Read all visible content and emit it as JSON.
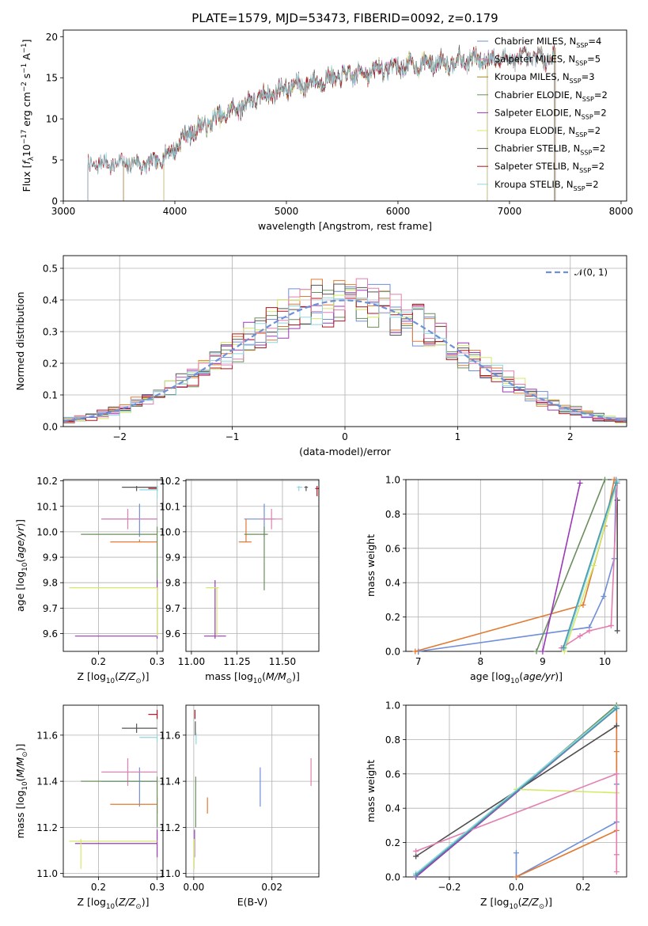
{
  "figure": {
    "title": "PLATE=1579, MJD=53473, FIBERID=0092, z=0.179"
  },
  "colors": {
    "palette": [
      "#6f8fd9",
      "#e07a33",
      "#6b8e5e",
      "#9b39b8",
      "#d4e86a",
      "#555555",
      "#b0141e",
      "#e37fb0",
      "#8fd8e0",
      "#4e4e4e"
    ],
    "grid": "#b0b0b0"
  },
  "chart_data": [
    {
      "id": "spectrum",
      "type": "line",
      "xlabel": "wavelength [Angstrom, rest frame]",
      "ylabel": "Flux [f_λ10^−17 erg cm^−2 s^−1 A^−1]",
      "xlim": [
        3000,
        8050
      ],
      "ylim": [
        0,
        20.8
      ],
      "xticks": [
        3000,
        4000,
        5000,
        6000,
        7000,
        8000
      ],
      "yticks": [
        0,
        5,
        10,
        15,
        20
      ],
      "grid": false,
      "legend_position": "right",
      "series": [
        {
          "name": "Chabrier MILES, N_SSP=4",
          "color": "#6f8fd9",
          "range": [
            3540,
            7410
          ]
        },
        {
          "name": "Salpeter MILES, N_SSP=5",
          "color": "#e37fb0",
          "range": [
            3540,
            7410
          ]
        },
        {
          "name": "Kroupa MILES, N_SSP=3",
          "color": "#a8841f",
          "range": [
            3540,
            7410
          ]
        },
        {
          "name": "Chabrier ELODIE, N_SSP=2",
          "color": "#6b8e5e",
          "range": [
            3900,
            6800
          ]
        },
        {
          "name": "Salpeter ELODIE, N_SSP=2",
          "color": "#9b39b8",
          "range": [
            3900,
            6800
          ]
        },
        {
          "name": "Kroupa ELODIE, N_SSP=2",
          "color": "#d4e86a",
          "range": [
            3900,
            6800
          ]
        },
        {
          "name": "Chabrier STELIB, N_SSP=2",
          "color": "#555555",
          "range": [
            3220,
            7400
          ]
        },
        {
          "name": "Salpeter STELIB, N_SSP=2",
          "color": "#b0141e",
          "range": [
            3220,
            7400
          ]
        },
        {
          "name": "Kroupa STELIB, N_SSP=2",
          "color": "#8fd8e0",
          "range": [
            3220,
            7400
          ]
        }
      ],
      "continuum": [
        [
          3220,
          4.4
        ],
        [
          3400,
          4.6
        ],
        [
          3600,
          4.6
        ],
        [
          3800,
          4.5
        ],
        [
          3950,
          5.8
        ],
        [
          4100,
          8.0
        ],
        [
          4400,
          10.2
        ],
        [
          4700,
          12.3
        ],
        [
          5000,
          13.8
        ],
        [
          5300,
          14.6
        ],
        [
          5600,
          15.4
        ],
        [
          5900,
          16.2
        ],
        [
          6300,
          16.8
        ],
        [
          6700,
          17.2
        ],
        [
          7000,
          17.3
        ],
        [
          7400,
          17.5
        ]
      ]
    },
    {
      "id": "residuals",
      "type": "histogram",
      "xlabel": "(data-model)/error",
      "ylabel": "Normed distribution",
      "xlim": [
        -2.5,
        2.5
      ],
      "ylim": [
        0,
        0.54
      ],
      "xticks": [
        -2,
        -1,
        0,
        1,
        2
      ],
      "yticks": [
        0.0,
        0.1,
        0.2,
        0.3,
        0.4,
        0.5
      ],
      "grid": true,
      "legend_position": "upper right",
      "reference_curve": {
        "name": "𝒩(0, 1)",
        "color": "#6f8fd9",
        "style": "dashed"
      },
      "bin_width": 0.1
    },
    {
      "id": "age-vs-Z",
      "type": "scatter",
      "xlabel": "Z [log10(Z/Z☉)]",
      "ylabel": "age  [log10(age/yr)]",
      "xlim": [
        0.14,
        0.31
      ],
      "ylim": [
        9.53,
        10.205
      ],
      "xticks": [
        0.2,
        0.3
      ],
      "yticks": [
        9.6,
        9.7,
        9.8,
        9.9,
        10.0,
        10.1,
        10.2
      ],
      "grid": true,
      "points": [
        {
          "x": 0.27,
          "y": 10.05,
          "xlo": 0.205,
          "xhi": 0.3,
          "ylo": 9.98,
          "yhi": 10.11,
          "color": "#6f8fd9"
        },
        {
          "x": 0.25,
          "y": 10.05,
          "xlo": 0.205,
          "xhi": 0.3,
          "ylo": 10.01,
          "yhi": 10.09,
          "color": "#e37fb0"
        },
        {
          "x": 0.27,
          "y": 9.96,
          "xlo": 0.22,
          "xhi": 0.3,
          "ylo": 9.96,
          "yhi": 9.97,
          "color": "#e07a33"
        },
        {
          "x": 0.3,
          "y": 9.99,
          "xlo": 0.17,
          "xhi": 0.3,
          "ylo": 9.77,
          "yhi": 10.02,
          "color": "#6b8e5e"
        },
        {
          "x": 0.3,
          "y": 9.59,
          "xlo": 0.16,
          "xhi": 0.3,
          "ylo": 9.58,
          "yhi": 9.81,
          "color": "#9b39b8"
        },
        {
          "x": 0.3,
          "y": 9.78,
          "xlo": 0.15,
          "xhi": 0.3,
          "ylo": 9.59,
          "yhi": 9.78,
          "color": "#d4e86a"
        },
        {
          "x": 0.265,
          "y": 10.175,
          "xlo": 0.24,
          "xhi": 0.3,
          "ylo": 10.16,
          "yhi": 10.18,
          "color": "#555555"
        },
        {
          "x": 0.3,
          "y": 10.17,
          "xlo": 0.285,
          "xhi": 0.3,
          "ylo": 10.16,
          "yhi": 10.18,
          "color": "#b0141e"
        },
        {
          "x": 0.3,
          "y": 10.165,
          "xlo": 0.27,
          "xhi": 0.3,
          "ylo": 10.13,
          "yhi": 10.18,
          "color": "#8fd8e0"
        }
      ]
    },
    {
      "id": "age-vs-mass",
      "type": "scatter",
      "xlabel": "mass [log10(M/M☉)]",
      "ylabel": "",
      "xlim": [
        10.97,
        11.7
      ],
      "ylim": [
        9.53,
        10.205
      ],
      "xticks": [
        11.0,
        11.25,
        11.5
      ],
      "yticks": [
        9.6,
        9.7,
        9.8,
        9.9,
        10.0,
        10.1,
        10.2
      ],
      "grid": true,
      "points": [
        {
          "x": 11.4,
          "y": 10.05,
          "xlo": 11.29,
          "xhi": 11.46,
          "ylo": 9.98,
          "yhi": 10.11,
          "color": "#6f8fd9"
        },
        {
          "x": 11.44,
          "y": 10.05,
          "xlo": 11.38,
          "xhi": 11.5,
          "ylo": 10.01,
          "yhi": 10.09,
          "color": "#e37fb0"
        },
        {
          "x": 11.3,
          "y": 9.96,
          "xlo": 11.26,
          "xhi": 11.33,
          "ylo": 9.96,
          "yhi": 10.05,
          "color": "#e07a33"
        },
        {
          "x": 11.4,
          "y": 9.99,
          "xlo": 11.29,
          "xhi": 11.42,
          "ylo": 9.77,
          "yhi": 10.02,
          "color": "#6b8e5e"
        },
        {
          "x": 11.13,
          "y": 9.59,
          "xlo": 11.07,
          "xhi": 11.19,
          "ylo": 9.58,
          "yhi": 9.81,
          "color": "#9b39b8"
        },
        {
          "x": 11.14,
          "y": 9.78,
          "xlo": 11.08,
          "xhi": 11.15,
          "ylo": 9.59,
          "yhi": 9.78,
          "color": "#d4e86a"
        },
        {
          "x": 11.63,
          "y": 10.175,
          "xlo": 11.62,
          "xhi": 11.64,
          "ylo": 10.16,
          "yhi": 10.18,
          "color": "#555555"
        },
        {
          "x": 11.69,
          "y": 10.17,
          "xlo": 11.68,
          "xhi": 11.7,
          "ylo": 10.14,
          "yhi": 10.18,
          "color": "#b0141e"
        },
        {
          "x": 11.59,
          "y": 10.175,
          "xlo": 11.58,
          "xhi": 11.61,
          "ylo": 10.16,
          "yhi": 10.18,
          "color": "#8fd8e0"
        }
      ]
    },
    {
      "id": "mass-weight-vs-age",
      "type": "line",
      "xlabel": "age  [log10(age/yr)]",
      "ylabel": "mass weight",
      "xlim": [
        6.8,
        10.35
      ],
      "ylim": [
        0,
        1.0
      ],
      "xticks": [
        7,
        8,
        9,
        10
      ],
      "yticks": [
        0.0,
        0.2,
        0.4,
        0.6,
        0.8,
        1.0
      ],
      "grid": true,
      "series": [
        {
          "color": "#6f8fd9",
          "points": [
            [
              7.0,
              0.0
            ],
            [
              9.75,
              0.14
            ],
            [
              9.98,
              0.32
            ],
            [
              10.15,
              0.54
            ],
            [
              10.18,
              1.0
            ]
          ]
        },
        {
          "color": "#e07a33",
          "points": [
            [
              6.95,
              0.0
            ],
            [
              9.65,
              0.27
            ],
            [
              10.0,
              0.73
            ],
            [
              10.15,
              1.0
            ]
          ]
        },
        {
          "color": "#6b8e5e",
          "points": [
            [
              8.9,
              0.0
            ],
            [
              10.0,
              1.0
            ]
          ]
        },
        {
          "color": "#9b39b8",
          "points": [
            [
              9.0,
              0.0
            ],
            [
              9.6,
              0.98
            ]
          ]
        },
        {
          "color": "#d4e86a",
          "points": [
            [
              9.35,
              0.0
            ],
            [
              9.82,
              0.5
            ],
            [
              10.2,
              0.99
            ]
          ]
        },
        {
          "color": "#555555",
          "points": [
            [
              10.2,
              0.12
            ],
            [
              10.2,
              0.88
            ]
          ]
        },
        {
          "color": "#e37fb0",
          "points": [
            [
              9.3,
              0.02
            ],
            [
              9.6,
              0.09
            ],
            [
              9.75,
              0.12
            ],
            [
              10.1,
              0.15
            ],
            [
              10.2,
              0.98
            ]
          ]
        },
        {
          "color": "#8fd8e0",
          "points": [
            [
              9.35,
              0.02
            ],
            [
              10.2,
              0.99
            ]
          ]
        },
        {
          "color": "#4a9aa8",
          "points": [
            [
              9.33,
              0.02
            ],
            [
              10.18,
              0.98
            ]
          ]
        }
      ]
    },
    {
      "id": "mass-vs-Z",
      "type": "scatter",
      "xlabel": "Z [log10(Z/Z☉)]",
      "ylabel": "mass [log10(M/M☉)]",
      "xlim": [
        0.14,
        0.31
      ],
      "ylim": [
        10.985,
        11.73
      ],
      "xticks": [
        0.2,
        0.3
      ],
      "yticks": [
        11.0,
        11.2,
        11.4,
        11.6
      ],
      "grid": true,
      "points": [
        {
          "x": 0.27,
          "y": 11.4,
          "xlo": 0.205,
          "xhi": 0.3,
          "ylo": 11.29,
          "yhi": 11.46,
          "color": "#6f8fd9"
        },
        {
          "x": 0.25,
          "y": 11.44,
          "xlo": 0.205,
          "xhi": 0.3,
          "ylo": 11.38,
          "yhi": 11.5,
          "color": "#e37fb0"
        },
        {
          "x": 0.3,
          "y": 11.3,
          "xlo": 0.22,
          "xhi": 0.3,
          "ylo": 11.26,
          "yhi": 11.33,
          "color": "#e07a33"
        },
        {
          "x": 0.3,
          "y": 11.4,
          "xlo": 0.17,
          "xhi": 0.3,
          "ylo": 11.2,
          "yhi": 11.42,
          "color": "#6b8e5e"
        },
        {
          "x": 0.3,
          "y": 11.13,
          "xlo": 0.16,
          "xhi": 0.3,
          "ylo": 11.07,
          "yhi": 11.19,
          "color": "#9b39b8"
        },
        {
          "x": 0.17,
          "y": 11.14,
          "xlo": 0.15,
          "xhi": 0.3,
          "ylo": 11.02,
          "yhi": 11.15,
          "color": "#d4e86a"
        },
        {
          "x": 0.265,
          "y": 11.63,
          "xlo": 0.24,
          "xhi": 0.3,
          "ylo": 11.61,
          "yhi": 11.65,
          "color": "#555555"
        },
        {
          "x": 0.3,
          "y": 11.69,
          "xlo": 0.285,
          "xhi": 0.3,
          "ylo": 11.67,
          "yhi": 11.71,
          "color": "#b0141e"
        },
        {
          "x": 0.3,
          "y": 11.59,
          "xlo": 0.27,
          "xhi": 0.3,
          "ylo": 11.57,
          "yhi": 11.6,
          "color": "#8fd8e0"
        }
      ]
    },
    {
      "id": "mass-vs-EBV",
      "type": "scatter",
      "xlabel": "E(B-V)",
      "ylabel": "",
      "xlim": [
        -0.002,
        0.032
      ],
      "ylim": [
        10.985,
        11.73
      ],
      "xticks": [
        0.0,
        0.02
      ],
      "yticks": [
        11.0,
        11.2,
        11.4,
        11.6
      ],
      "grid": true,
      "points": [
        {
          "x": 0.017,
          "y": 11.4,
          "ylo": 11.29,
          "yhi": 11.46,
          "color": "#6f8fd9"
        },
        {
          "x": 0.03,
          "y": 11.44,
          "ylo": 11.38,
          "yhi": 11.5,
          "color": "#e37fb0"
        },
        {
          "x": 0.0035,
          "y": 11.3,
          "ylo": 11.26,
          "yhi": 11.33,
          "color": "#e07a33"
        },
        {
          "x": 0.0005,
          "y": 11.4,
          "ylo": 11.2,
          "yhi": 11.42,
          "color": "#6b8e5e"
        },
        {
          "x": 0.0002,
          "y": 11.13,
          "ylo": 11.07,
          "yhi": 11.19,
          "color": "#9b39b8"
        },
        {
          "x": 0.0001,
          "y": 11.14,
          "ylo": 11.02,
          "yhi": 11.15,
          "color": "#d4e86a"
        },
        {
          "x": 0.0004,
          "y": 11.63,
          "ylo": 11.6,
          "yhi": 11.66,
          "color": "#555555"
        },
        {
          "x": 0.0003,
          "y": 11.69,
          "ylo": 11.67,
          "yhi": 11.71,
          "color": "#b0141e"
        },
        {
          "x": 0.0006,
          "y": 11.59,
          "ylo": 11.56,
          "yhi": 11.61,
          "color": "#8fd8e0"
        }
      ]
    },
    {
      "id": "mass-weight-vs-Z",
      "type": "line",
      "xlabel": "Z [log10(Z/Z☉)]",
      "ylabel": "mass weight",
      "xlim": [
        -0.33,
        0.33
      ],
      "ylim": [
        0,
        1.0
      ],
      "xticks": [
        -0.2,
        0.0,
        0.2
      ],
      "yticks": [
        0.0,
        0.2,
        0.4,
        0.6,
        0.8,
        1.0
      ],
      "grid": true,
      "series": [
        {
          "color": "#6f8fd9",
          "points": [
            [
              0.0,
              0.0
            ],
            [
              0.0,
              0.14
            ],
            [
              0.0,
              0.0
            ],
            [
              0.3,
              0.32
            ],
            [
              0.3,
              0.54
            ],
            [
              0.3,
              1.0
            ]
          ]
        },
        {
          "color": "#e07a33",
          "points": [
            [
              0.0,
              0.0
            ],
            [
              0.3,
              0.27
            ],
            [
              0.3,
              0.73
            ],
            [
              0.3,
              1.0
            ]
          ]
        },
        {
          "color": "#6b8e5e",
          "points": [
            [
              -0.3,
              0.0
            ],
            [
              0.3,
              1.0
            ]
          ]
        },
        {
          "color": "#9b39b8",
          "points": [
            [
              -0.3,
              0.0
            ],
            [
              0.3,
              0.98
            ]
          ]
        },
        {
          "color": "#d4e86a",
          "points": [
            [
              0.0,
              0.51
            ],
            [
              0.3,
              0.49
            ]
          ]
        },
        {
          "color": "#4e4e4e",
          "points": [
            [
              -0.3,
              0.12
            ],
            [
              0.3,
              0.88
            ]
          ]
        },
        {
          "color": "#e37fb0",
          "points": [
            [
              -0.3,
              0.15
            ],
            [
              0.3,
              0.6
            ],
            [
              0.3,
              0.03
            ],
            [
              0.3,
              0.13
            ]
          ]
        },
        {
          "color": "#8fd8e0",
          "points": [
            [
              -0.3,
              0.02
            ],
            [
              0.3,
              0.99
            ]
          ]
        },
        {
          "color": "#4a9aa8",
          "points": [
            [
              -0.3,
              0.01
            ],
            [
              0.3,
              0.98
            ]
          ]
        }
      ]
    }
  ]
}
